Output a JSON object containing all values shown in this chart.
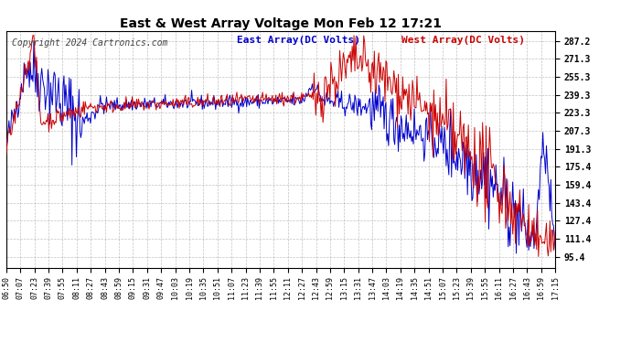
{
  "title": "East & West Array Voltage Mon Feb 12 17:21",
  "legend_east": "East Array(DC Volts)",
  "legend_west": "West Array(DC Volts)",
  "copyright": "Copyright 2024 Cartronics.com",
  "y_ticks": [
    95.4,
    111.4,
    127.4,
    143.4,
    159.4,
    175.4,
    191.3,
    207.3,
    223.3,
    239.3,
    255.3,
    271.3,
    287.2
  ],
  "ylim": [
    86.0,
    296.0
  ],
  "x_labels": [
    "06:50",
    "07:07",
    "07:23",
    "07:39",
    "07:55",
    "08:11",
    "08:27",
    "08:43",
    "08:59",
    "09:15",
    "09:31",
    "09:47",
    "10:03",
    "10:19",
    "10:35",
    "10:51",
    "11:07",
    "11:23",
    "11:39",
    "11:55",
    "12:11",
    "12:27",
    "12:43",
    "12:59",
    "13:15",
    "13:31",
    "13:47",
    "14:03",
    "14:19",
    "14:35",
    "14:51",
    "15:07",
    "15:23",
    "15:39",
    "15:55",
    "16:11",
    "16:27",
    "16:43",
    "16:59",
    "17:15"
  ],
  "east_color": "#0000cc",
  "west_color": "#cc0000",
  "title_color": "#000000",
  "bg_color": "#ffffff",
  "grid_color": "#999999",
  "copyright_color": "#444444",
  "figwidth": 6.9,
  "figheight": 3.75,
  "dpi": 100
}
